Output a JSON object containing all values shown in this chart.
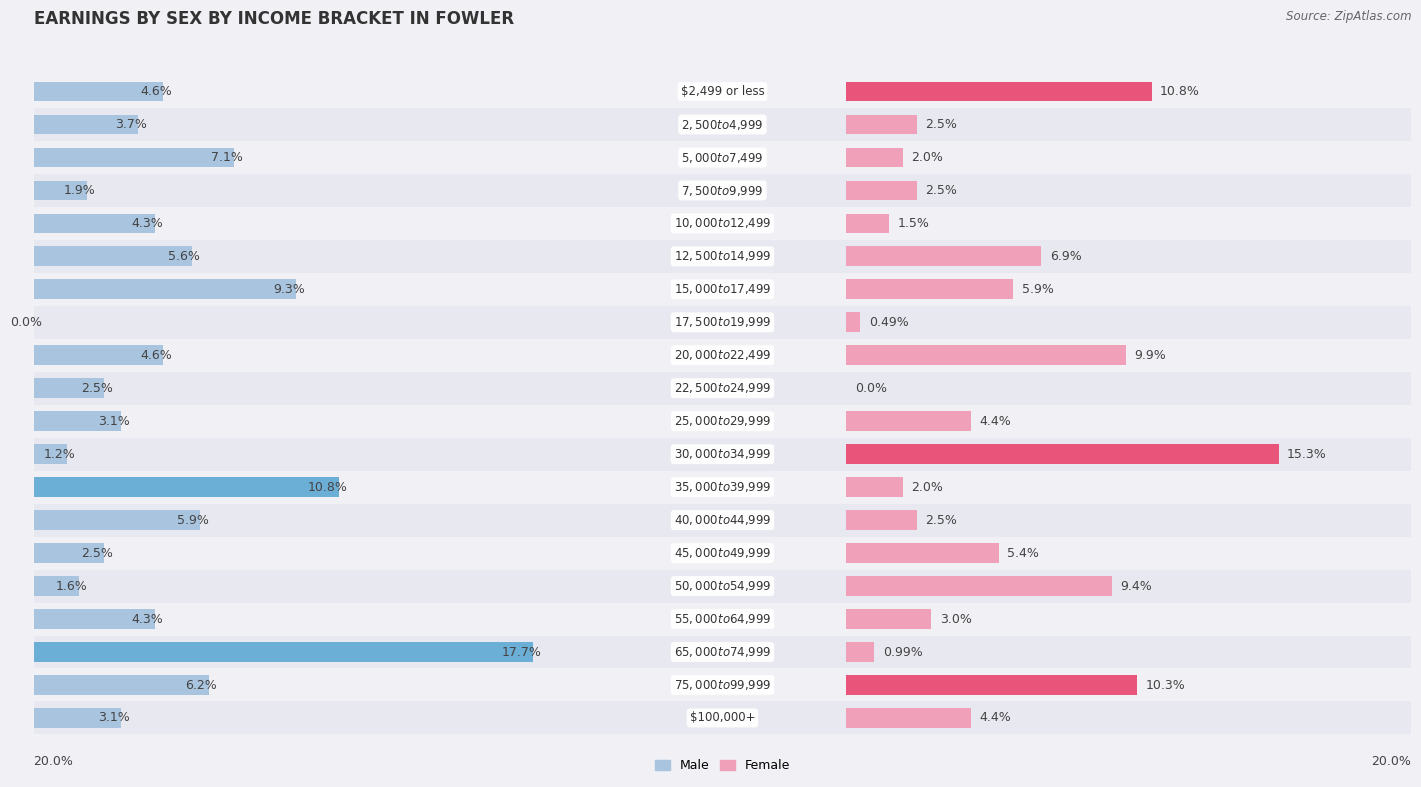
{
  "title": "EARNINGS BY SEX BY INCOME BRACKET IN FOWLER",
  "source": "Source: ZipAtlas.com",
  "categories": [
    "$2,499 or less",
    "$2,500 to $4,999",
    "$5,000 to $7,499",
    "$7,500 to $9,999",
    "$10,000 to $12,499",
    "$12,500 to $14,999",
    "$15,000 to $17,499",
    "$17,500 to $19,999",
    "$20,000 to $22,499",
    "$22,500 to $24,999",
    "$25,000 to $29,999",
    "$30,000 to $34,999",
    "$35,000 to $39,999",
    "$40,000 to $44,999",
    "$45,000 to $49,999",
    "$50,000 to $54,999",
    "$55,000 to $64,999",
    "$65,000 to $74,999",
    "$75,000 to $99,999",
    "$100,000+"
  ],
  "male_values": [
    4.6,
    3.7,
    7.1,
    1.9,
    4.3,
    5.6,
    9.3,
    0.0,
    4.6,
    2.5,
    3.1,
    1.2,
    10.8,
    5.9,
    2.5,
    1.6,
    4.3,
    17.7,
    6.2,
    3.1
  ],
  "female_values": [
    10.8,
    2.5,
    2.0,
    2.5,
    1.5,
    6.9,
    5.9,
    0.49,
    9.9,
    0.0,
    4.4,
    15.3,
    2.0,
    2.5,
    5.4,
    9.4,
    3.0,
    0.99,
    10.3,
    4.4
  ],
  "male_color": "#a8c4df",
  "female_color": "#f0a0b8",
  "male_highlight_color": "#6baed6",
  "female_highlight_color": "#e8547a",
  "highlight_male": [
    12,
    17
  ],
  "highlight_female": [
    0,
    11,
    18
  ],
  "xlim": 20.0,
  "legend_male": "Male",
  "legend_female": "Female",
  "row_colors": [
    "#f0f0f5",
    "#e8e8f0"
  ],
  "background_color": "#f0f0f5",
  "title_fontsize": 12,
  "label_fontsize": 9,
  "category_fontsize": 8.5,
  "source_fontsize": 8.5
}
